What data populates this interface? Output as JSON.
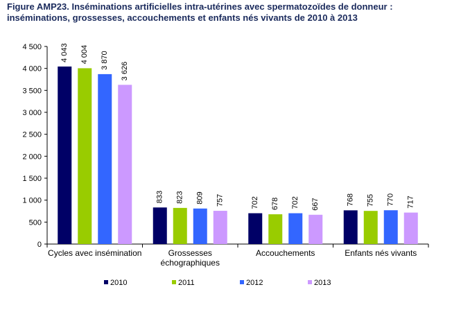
{
  "title_prefix": "Figure AMP23.",
  "title": "Inséminations artificielles intra-utérines avec spermatozoïdes de donneur : inséminations, grossesses, accouchements et enfants nés vivants de 2010 à 2013",
  "chart_data": {
    "type": "bar",
    "categories": [
      [
        "Cycles avec insémination"
      ],
      [
        "Grossesses",
        "échographiques"
      ],
      [
        "Accouchements"
      ],
      [
        "Enfants nés vivants"
      ]
    ],
    "series": [
      {
        "name": "2010",
        "color": "#000066",
        "values": [
          4043,
          833,
          702,
          768
        ],
        "labels": [
          "4 043",
          "833",
          "702",
          "768"
        ]
      },
      {
        "name": "2011",
        "color": "#99cc00",
        "values": [
          4004,
          823,
          678,
          755
        ],
        "labels": [
          "4 004",
          "823",
          "678",
          "755"
        ]
      },
      {
        "name": "2012",
        "color": "#3366ff",
        "values": [
          3870,
          809,
          702,
          770
        ],
        "labels": [
          "3 870",
          "809",
          "702",
          "770"
        ]
      },
      {
        "name": "2013",
        "color": "#cc99ff",
        "values": [
          3626,
          757,
          667,
          717
        ],
        "labels": [
          "3 626",
          "757",
          "667",
          "717"
        ]
      }
    ],
    "ylim": [
      0,
      4500
    ],
    "yticks": [
      0,
      500,
      1000,
      1500,
      2000,
      2500,
      3000,
      3500,
      4000,
      4500
    ],
    "ytick_labels": [
      "0",
      "500",
      "1 000",
      "1 500",
      "2 000",
      "2 500",
      "3 000",
      "3 500",
      "4 000",
      "4 500"
    ],
    "grid": false,
    "legend_position": "bottom"
  }
}
